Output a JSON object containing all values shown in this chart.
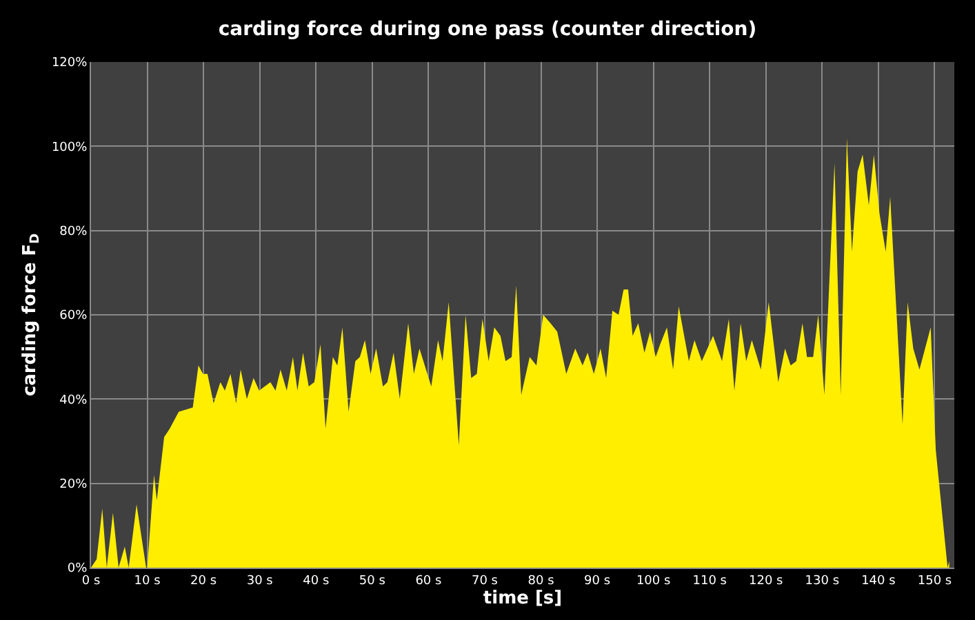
{
  "chart_data": {
    "type": "area",
    "title": "carding force during one pass (counter direction)",
    "xlabel": "time [s]",
    "ylabel": "carding force F$_{D}$",
    "xlim": [
      0,
      153.5
    ],
    "ylim": [
      0,
      120
    ],
    "xticks": [
      {
        "value": 0,
        "label": "0 s"
      },
      {
        "value": 10,
        "label": "10 s"
      },
      {
        "value": 20,
        "label": "20 s"
      },
      {
        "value": 30,
        "label": "30 s"
      },
      {
        "value": 40,
        "label": "40 s"
      },
      {
        "value": 50,
        "label": "50 s"
      },
      {
        "value": 60,
        "label": "60 s"
      },
      {
        "value": 70,
        "label": "70 s"
      },
      {
        "value": 80,
        "label": "80 s"
      },
      {
        "value": 90,
        "label": "90 s"
      },
      {
        "value": 100,
        "label": "100 s"
      },
      {
        "value": 110,
        "label": "110 s"
      },
      {
        "value": 120,
        "label": "120 s"
      },
      {
        "value": 130,
        "label": "130 s"
      },
      {
        "value": 140,
        "label": "140 s"
      },
      {
        "value": 150,
        "label": "150 s"
      }
    ],
    "yticks": [
      {
        "value": 0,
        "label": "0%"
      },
      {
        "value": 20,
        "label": "20%"
      },
      {
        "value": 40,
        "label": "40%"
      },
      {
        "value": 60,
        "label": "60%"
      },
      {
        "value": 80,
        "label": "80%"
      },
      {
        "value": 100,
        "label": "100%"
      },
      {
        "value": 120,
        "label": "120%"
      }
    ],
    "grid": true,
    "series": [
      {
        "color": "#ffee00",
        "x": [
          0,
          1,
          2,
          2.8,
          3.9,
          4.9,
          6,
          6.7,
          8.1,
          9.8,
          10,
          11.2,
          11.7,
          13,
          14,
          15.6,
          18.1,
          19.1,
          19.9,
          20.7,
          21.8,
          23,
          23.8,
          24.8,
          25.8,
          26.6,
          27.7,
          28.9,
          29.9,
          31.9,
          32.8,
          33.7,
          34.8,
          35.9,
          36.7,
          37.7,
          38.7,
          39.7,
          40.8,
          41.7,
          43,
          43.8,
          44.7,
          45.8,
          47,
          47.8,
          48.7,
          49.7,
          50.7,
          51.9,
          52.7,
          53.8,
          54.9,
          56.4,
          57.4,
          58.4,
          60.5,
          61.7,
          62.5,
          63.6,
          65.4,
          66.6,
          67.6,
          68.6,
          69.6,
          70.7,
          71.7,
          72.8,
          73.7,
          74.8,
          75.6,
          76.5,
          78,
          79.2,
          80.4,
          81.7,
          82.9,
          84.5,
          86.1,
          87.4,
          88.3,
          89.4,
          90.6,
          91.6,
          92.7,
          93.8,
          94.7,
          95.5,
          96.3,
          97.3,
          98.4,
          99.4,
          100.4,
          101.2,
          102.4,
          103.5,
          104.5,
          106.3,
          107.3,
          108.6,
          110.6,
          112.2,
          113.4,
          114.4,
          115.5,
          116.5,
          117.5,
          119.1,
          120.5,
          122.2,
          123.4,
          124.4,
          125.4,
          126.5,
          127.3,
          128.4,
          129.3,
          130.4,
          132.2,
          133.3,
          134.4,
          135.3,
          136.3,
          137.2,
          138.3,
          139.2,
          140.2,
          141.3,
          142.1,
          144.3,
          145.2,
          146.2,
          147.3,
          149.3,
          150.2,
          152.3,
          152.6
        ],
        "values": [
          0,
          2,
          14,
          0,
          13,
          0,
          5,
          0,
          15,
          0,
          0,
          22,
          16,
          31,
          33,
          37,
          38,
          48,
          46,
          46,
          39,
          44,
          42,
          46,
          39,
          47,
          40,
          45,
          42,
          44,
          42,
          47,
          42,
          50,
          42,
          51,
          43,
          44,
          53,
          33,
          50,
          48,
          57,
          37,
          49,
          50,
          54,
          46,
          52,
          43,
          44,
          51,
          40,
          58,
          46,
          52,
          43,
          54,
          49,
          63,
          29,
          60,
          45,
          46,
          59,
          49,
          57,
          55,
          49,
          50,
          67,
          41,
          50,
          48,
          60,
          58,
          56,
          46,
          52,
          48,
          51,
          46,
          52,
          45,
          61,
          60,
          66,
          66,
          55,
          58,
          51,
          56,
          50,
          53,
          57,
          47,
          62,
          49,
          54,
          49,
          55,
          49,
          59,
          42,
          58,
          49,
          54,
          47,
          63,
          44,
          52,
          48,
          49,
          58,
          50,
          50,
          60,
          41,
          96,
          41,
          102,
          75,
          94,
          98,
          86,
          98,
          84,
          75,
          88,
          34,
          63,
          52,
          47,
          57,
          28,
          0,
          1.5
        ]
      }
    ]
  }
}
